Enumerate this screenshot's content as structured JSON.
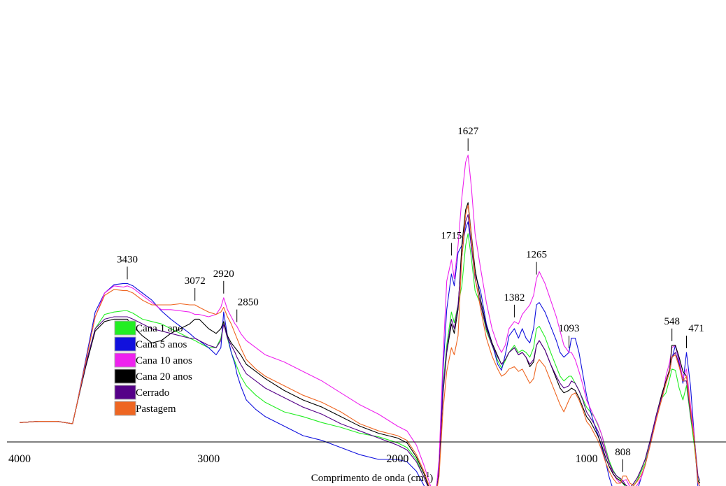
{
  "chart_data": {
    "type": "line",
    "title": "",
    "xlabel": "Comprimento de onda (cm",
    "xlabel_sup": "-1",
    "xlabel_close": ")",
    "ylabel": "",
    "xlim": [
      4000,
      400
    ],
    "x_reversed": true,
    "grid": false,
    "legend_position": "bottom-left",
    "x_ticks": [
      4000,
      3000,
      2000,
      1000
    ],
    "x_tick_labels": [
      "4000",
      "3000",
      "2000",
      "1000"
    ],
    "peak_labels": [
      {
        "x": 3430,
        "text": "3430"
      },
      {
        "x": 3072,
        "text": "3072"
      },
      {
        "x": 2920,
        "text": "2920"
      },
      {
        "x": 2850,
        "text": "2850"
      },
      {
        "x": 1715,
        "text": "1715"
      },
      {
        "x": 1627,
        "text": "1627"
      },
      {
        "x": 1382,
        "text": "1382"
      },
      {
        "x": 1265,
        "text": "1265"
      },
      {
        "x": 1093,
        "text": "1093"
      },
      {
        "x": 808,
        "text": "808"
      },
      {
        "x": 548,
        "text": "548"
      },
      {
        "x": 471,
        "text": "471"
      }
    ],
    "x": [
      4000,
      3900,
      3800,
      3720,
      3700,
      3650,
      3600,
      3550,
      3500,
      3450,
      3430,
      3400,
      3350,
      3300,
      3250,
      3200,
      3150,
      3100,
      3072,
      3050,
      3000,
      2960,
      2935,
      2920,
      2900,
      2880,
      2860,
      2850,
      2830,
      2800,
      2750,
      2700,
      2600,
      2500,
      2400,
      2300,
      2200,
      2100,
      2000,
      1950,
      1900,
      1860,
      1820,
      1800,
      1780,
      1760,
      1740,
      1715,
      1700,
      1680,
      1660,
      1640,
      1627,
      1610,
      1590,
      1560,
      1530,
      1500,
      1470,
      1450,
      1430,
      1410,
      1382,
      1360,
      1340,
      1320,
      1300,
      1280,
      1265,
      1250,
      1220,
      1190,
      1160,
      1140,
      1120,
      1093,
      1080,
      1060,
      1040,
      1020,
      1000,
      980,
      960,
      940,
      920,
      900,
      880,
      860,
      840,
      820,
      808,
      790,
      770,
      750,
      730,
      710,
      690,
      660,
      630,
      600,
      580,
      560,
      548,
      530,
      510,
      490,
      471,
      450,
      430,
      410,
      400
    ],
    "series": [
      {
        "name": "Cana 1 ano",
        "color": "#22ee22",
        "values": [
          1.0,
          2.0,
          2.0,
          0.0,
          14,
          50,
          80,
          92,
          94,
          95,
          95,
          93,
          88,
          86,
          84,
          80,
          76,
          72,
          70,
          68,
          64,
          64,
          72,
          85,
          72,
          60,
          52,
          48,
          40,
          32,
          24,
          18,
          10,
          6,
          1,
          -3,
          -8,
          -11,
          -16,
          -20,
          -30,
          -45,
          -60,
          -64,
          -40,
          30,
          66,
          94,
          85,
          100,
          116,
          150,
          160,
          140,
          112,
          100,
          78,
          66,
          53,
          47,
          53,
          60,
          66,
          60,
          62,
          60,
          56,
          64,
          80,
          82,
          73,
          60,
          48,
          40,
          36,
          40,
          40,
          34,
          28,
          21,
          14,
          10,
          6,
          -1,
          -9,
          -20,
          -31,
          -39,
          -44,
          -47,
          -50,
          -54,
          -56,
          -52,
          -47,
          -40,
          -33,
          -15,
          6,
          22,
          26,
          38,
          46,
          45,
          30,
          20,
          32,
          6,
          -18,
          -47,
          -50
        ]
      },
      {
        "name": "Cana 5 anos",
        "color": "#1111dd",
        "values": [
          1.0,
          2.0,
          2.0,
          0.0,
          14,
          54,
          94,
          110,
          117,
          118,
          118,
          116,
          110,
          104,
          95,
          88,
          82,
          76,
          72,
          70,
          64,
          58,
          64,
          94,
          74,
          60,
          50,
          42,
          32,
          20,
          12,
          6,
          -2,
          -10,
          -14,
          -20,
          -26,
          -30,
          -30,
          -32,
          -40,
          -52,
          -62,
          -64,
          -35,
          42,
          96,
          126,
          116,
          144,
          150,
          164,
          170,
          150,
          126,
          111,
          84,
          68,
          50,
          45,
          58,
          74,
          80,
          72,
          80,
          72,
          68,
          80,
          100,
          102,
          94,
          82,
          70,
          60,
          56,
          60,
          72,
          72,
          60,
          42,
          24,
          11,
          0,
          -9,
          -20,
          -31,
          -45,
          -55,
          -58,
          -56,
          -54,
          -58,
          -60,
          -60,
          -55,
          -45,
          -35,
          -15,
          5,
          22,
          34,
          44,
          55,
          66,
          52,
          34,
          60,
          32,
          -10,
          -54,
          -52
        ]
      },
      {
        "name": "Cana 10 anos",
        "color": "#ee22ee",
        "values": [
          1.0,
          2.0,
          2.0,
          0.0,
          14,
          52,
          90,
          110,
          116,
          115,
          116,
          114,
          108,
          102,
          96,
          96,
          95,
          94,
          92,
          92,
          90,
          92,
          98,
          106,
          96,
          90,
          84,
          82,
          76,
          70,
          64,
          58,
          52,
          44,
          36,
          26,
          16,
          8,
          -2,
          -6,
          -18,
          -35,
          -55,
          -64,
          -30,
          52,
          120,
          138,
          122,
          150,
          190,
          220,
          226,
          200,
          160,
          130,
          102,
          80,
          66,
          60,
          66,
          80,
          86,
          84,
          92,
          96,
          100,
          108,
          122,
          128,
          118,
          104,
          90,
          78,
          66,
          60,
          60,
          54,
          44,
          33,
          20,
          13,
          6,
          0,
          -9,
          -22,
          -33,
          -42,
          -47,
          -50,
          -48,
          -47,
          -53,
          -55,
          -51,
          -45,
          -35,
          -16,
          5,
          22,
          40,
          52,
          64,
          66,
          54,
          38,
          46,
          16,
          -10,
          -50,
          -50
        ]
      },
      {
        "name": "Cana 20 anos",
        "color": "#000000",
        "values": [
          1.0,
          2.0,
          2.0,
          0.0,
          14,
          48,
          78,
          86,
          88,
          88,
          88,
          82,
          74,
          68,
          70,
          76,
          80,
          84,
          88,
          88,
          80,
          76,
          80,
          86,
          74,
          68,
          64,
          62,
          58,
          50,
          44,
          38,
          28,
          20,
          14,
          6,
          -2,
          -8,
          -12,
          -16,
          -28,
          -42,
          -60,
          -64,
          -40,
          24,
          60,
          84,
          76,
          96,
          150,
          180,
          186,
          160,
          130,
          104,
          82,
          68,
          57,
          50,
          54,
          60,
          64,
          58,
          60,
          56,
          48,
          52,
          66,
          70,
          62,
          50,
          38,
          30,
          26,
          28,
          30,
          28,
          22,
          14,
          6,
          2,
          -4,
          -10,
          -18,
          -28,
          -36,
          -42,
          -46,
          -48,
          -50,
          -52,
          -54,
          -50,
          -45,
          -38,
          -30,
          -12,
          8,
          26,
          36,
          46,
          66,
          66,
          56,
          44,
          40,
          10,
          -14,
          -48,
          -50
        ]
      },
      {
        "name": "Cerrado",
        "color": "#550088",
        "values": [
          1.0,
          2.0,
          2.0,
          0.0,
          14,
          50,
          80,
          88,
          90,
          90,
          90,
          88,
          84,
          80,
          78,
          76,
          74,
          72,
          72,
          70,
          66,
          64,
          70,
          84,
          72,
          66,
          60,
          56,
          50,
          42,
          36,
          30,
          22,
          14,
          8,
          0,
          -6,
          -12,
          -18,
          -22,
          -32,
          -45,
          -60,
          -64,
          -40,
          26,
          62,
          88,
          80,
          100,
          140,
          170,
          176,
          150,
          122,
          100,
          80,
          66,
          56,
          50,
          54,
          60,
          64,
          58,
          60,
          56,
          50,
          54,
          66,
          70,
          62,
          50,
          40,
          34,
          30,
          32,
          36,
          34,
          28,
          20,
          10,
          5,
          0,
          -6,
          -14,
          -24,
          -33,
          -40,
          -44,
          -46,
          -48,
          -52,
          -54,
          -50,
          -45,
          -38,
          -30,
          -12,
          8,
          24,
          34,
          44,
          56,
          60,
          50,
          36,
          36,
          8,
          -12,
          -44,
          -48
        ]
      },
      {
        "name": "Pastagem",
        "color": "#ee6622",
        "values": [
          1.0,
          2.0,
          2.0,
          0.0,
          14,
          52,
          90,
          108,
          113,
          112,
          112,
          110,
          104,
          100,
          100,
          100,
          101,
          100,
          100,
          98,
          94,
          92,
          94,
          98,
          90,
          84,
          76,
          72,
          64,
          54,
          46,
          40,
          32,
          24,
          18,
          10,
          0,
          -6,
          -10,
          -14,
          -26,
          -40,
          -58,
          -64,
          -44,
          10,
          44,
          64,
          58,
          74,
          140,
          176,
          184,
          158,
          124,
          96,
          72,
          57,
          46,
          40,
          42,
          46,
          48,
          44,
          46,
          40,
          34,
          38,
          50,
          54,
          48,
          36,
          24,
          16,
          10,
          20,
          24,
          26,
          20,
          12,
          2,
          -2,
          -8,
          -14,
          -22,
          -32,
          -40,
          -46,
          -50,
          -50,
          -44,
          -44,
          -50,
          -52,
          -48,
          -43,
          -35,
          -16,
          4,
          22,
          34,
          44,
          56,
          58,
          48,
          36,
          40,
          12,
          -14,
          -50,
          -52
        ]
      }
    ]
  }
}
